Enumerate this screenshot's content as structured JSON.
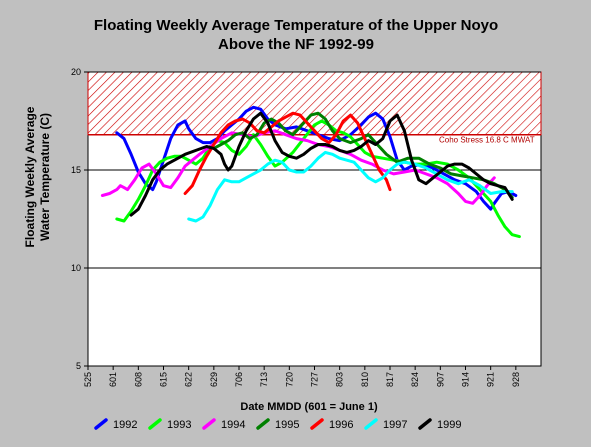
{
  "chart_data": {
    "type": "line",
    "title_line1": "Floating Weekly Average Temperature of the Upper Noyo",
    "title_line2": "Above the NF 1992-99",
    "xlabel": "Date MMDD (601 = June 1)",
    "ylabel_line1": "Floating Weekly Average",
    "ylabel_line2": "Water Temperature (C)",
    "x_tick_labels": [
      "525",
      "601",
      "608",
      "615",
      "622",
      "629",
      "706",
      "713",
      "720",
      "727",
      "803",
      "810",
      "817",
      "824",
      "907",
      "914",
      "921",
      "928"
    ],
    "xlim_day": [
      0,
      126
    ],
    "ylim": [
      5,
      20
    ],
    "y_ticks": [
      5,
      10,
      15,
      20
    ],
    "horizontal_lines": [
      10,
      15,
      20
    ],
    "stress_threshold": 16.8,
    "stress_label": "Coho Stress 16.8  C MWAT",
    "colors": {
      "stress": "#cc0000",
      "grid": "#000000"
    },
    "series": [
      {
        "name": "1992",
        "color": "#0000ff",
        "points": [
          [
            8,
            16.9
          ],
          [
            10,
            16.6
          ],
          [
            12,
            15.8
          ],
          [
            14,
            14.9
          ],
          [
            16,
            14.3
          ],
          [
            18,
            14.0
          ],
          [
            19,
            14.4
          ],
          [
            21,
            15.5
          ],
          [
            23,
            16.6
          ],
          [
            25,
            17.3
          ],
          [
            27,
            17.5
          ],
          [
            28,
            17.1
          ],
          [
            30,
            16.6
          ],
          [
            32,
            16.4
          ],
          [
            34,
            16.4
          ],
          [
            36,
            16.6
          ],
          [
            38,
            17.0
          ],
          [
            40,
            17.3
          ],
          [
            42,
            17.6
          ],
          [
            44,
            18.0
          ],
          [
            46,
            18.2
          ],
          [
            48,
            18.1
          ],
          [
            50,
            17.6
          ],
          [
            52,
            17.3
          ],
          [
            55,
            17.1
          ],
          [
            58,
            17.2
          ],
          [
            61,
            17.0
          ],
          [
            64,
            16.8
          ],
          [
            67,
            16.6
          ],
          [
            70,
            16.5
          ],
          [
            73,
            16.8
          ],
          [
            76,
            17.3
          ],
          [
            78,
            17.7
          ],
          [
            80,
            17.9
          ],
          [
            82,
            17.6
          ],
          [
            84,
            16.7
          ],
          [
            86,
            15.5
          ],
          [
            88,
            15.0
          ],
          [
            90,
            15.2
          ],
          [
            93,
            15.3
          ],
          [
            96,
            15.1
          ],
          [
            99,
            14.8
          ],
          [
            102,
            14.5
          ],
          [
            105,
            14.3
          ],
          [
            108,
            13.9
          ],
          [
            110,
            13.4
          ],
          [
            112,
            13.0
          ],
          [
            113,
            13.3
          ],
          [
            115,
            13.8
          ],
          [
            117,
            13.9
          ],
          [
            119,
            13.7
          ]
        ]
      },
      {
        "name": "1993",
        "color": "#00ff00",
        "points": [
          [
            8,
            12.5
          ],
          [
            10,
            12.4
          ],
          [
            12,
            12.9
          ],
          [
            14,
            13.5
          ],
          [
            16,
            14.2
          ],
          [
            18,
            15.0
          ],
          [
            20,
            15.4
          ],
          [
            22,
            15.6
          ],
          [
            24,
            15.7
          ],
          [
            26,
            15.7
          ],
          [
            28,
            15.5
          ],
          [
            30,
            15.3
          ],
          [
            32,
            15.6
          ],
          [
            34,
            16.2
          ],
          [
            36,
            16.5
          ],
          [
            38,
            16.4
          ],
          [
            40,
            16.0
          ],
          [
            42,
            15.8
          ],
          [
            44,
            16.2
          ],
          [
            46,
            16.8
          ],
          [
            48,
            16.3
          ],
          [
            50,
            15.7
          ],
          [
            52,
            15.2
          ],
          [
            54,
            15.4
          ],
          [
            57,
            15.9
          ],
          [
            60,
            16.6
          ],
          [
            63,
            17.3
          ],
          [
            65,
            17.5
          ],
          [
            67,
            17.3
          ],
          [
            69,
            17.0
          ],
          [
            71,
            16.9
          ],
          [
            73,
            16.7
          ],
          [
            75,
            16.3
          ],
          [
            77,
            15.9
          ],
          [
            79,
            15.7
          ],
          [
            82,
            15.6
          ],
          [
            85,
            15.5
          ],
          [
            88,
            15.4
          ],
          [
            91,
            15.3
          ],
          [
            94,
            15.3
          ],
          [
            97,
            15.4
          ],
          [
            100,
            15.3
          ],
          [
            103,
            15.0
          ],
          [
            106,
            14.6
          ],
          [
            109,
            14.0
          ],
          [
            112,
            13.4
          ],
          [
            114,
            12.7
          ],
          [
            116,
            12.1
          ],
          [
            118,
            11.7
          ],
          [
            120,
            11.6
          ]
        ]
      },
      {
        "name": "1994",
        "color": "#ff00ff",
        "points": [
          [
            4,
            13.7
          ],
          [
            6,
            13.8
          ],
          [
            8,
            14.0
          ],
          [
            9,
            14.2
          ],
          [
            10,
            14.1
          ],
          [
            11,
            14.0
          ],
          [
            13,
            14.5
          ],
          [
            15,
            15.1
          ],
          [
            17,
            15.3
          ],
          [
            19,
            14.8
          ],
          [
            21,
            14.2
          ],
          [
            23,
            14.1
          ],
          [
            25,
            14.6
          ],
          [
            27,
            15.2
          ],
          [
            29,
            15.5
          ],
          [
            31,
            15.8
          ],
          [
            34,
            16.2
          ],
          [
            37,
            16.6
          ],
          [
            40,
            16.9
          ],
          [
            43,
            16.8
          ],
          [
            46,
            16.7
          ],
          [
            49,
            16.9
          ],
          [
            52,
            17.0
          ],
          [
            55,
            16.8
          ],
          [
            58,
            16.6
          ],
          [
            61,
            16.5
          ],
          [
            64,
            16.3
          ],
          [
            67,
            16.2
          ],
          [
            70,
            16.0
          ],
          [
            73,
            15.8
          ],
          [
            76,
            15.5
          ],
          [
            79,
            15.3
          ],
          [
            82,
            15.0
          ],
          [
            85,
            14.8
          ],
          [
            88,
            14.9
          ],
          [
            91,
            15.0
          ],
          [
            94,
            14.8
          ],
          [
            97,
            14.6
          ],
          [
            100,
            14.3
          ],
          [
            103,
            13.8
          ],
          [
            105,
            13.4
          ],
          [
            107,
            13.3
          ],
          [
            109,
            13.7
          ],
          [
            111,
            14.2
          ],
          [
            113,
            14.6
          ]
        ]
      },
      {
        "name": "1995",
        "color": "#008000",
        "points": [
          [
            35,
            16.1
          ],
          [
            37,
            16.3
          ],
          [
            39,
            16.5
          ],
          [
            41,
            16.8
          ],
          [
            43,
            16.9
          ],
          [
            45,
            16.6
          ],
          [
            47,
            16.8
          ],
          [
            49,
            17.4
          ],
          [
            51,
            17.6
          ],
          [
            53,
            17.4
          ],
          [
            55,
            17.0
          ],
          [
            57,
            16.8
          ],
          [
            60,
            17.4
          ],
          [
            62,
            17.8
          ],
          [
            64,
            17.9
          ],
          [
            66,
            17.6
          ],
          [
            68,
            17.0
          ],
          [
            70,
            16.6
          ],
          [
            73,
            16.4
          ],
          [
            76,
            16.6
          ],
          [
            78,
            16.8
          ],
          [
            80,
            16.4
          ],
          [
            83,
            15.8
          ],
          [
            86,
            15.4
          ],
          [
            89,
            15.6
          ],
          [
            92,
            15.6
          ],
          [
            95,
            15.3
          ],
          [
            98,
            15.1
          ],
          [
            101,
            14.8
          ],
          [
            104,
            14.7
          ],
          [
            107,
            14.6
          ],
          [
            110,
            14.5
          ],
          [
            113,
            14.3
          ],
          [
            116,
            14.0
          ],
          [
            118,
            13.6
          ]
        ]
      },
      {
        "name": "1996",
        "color": "#ff0000",
        "points": [
          [
            27,
            13.8
          ],
          [
            29,
            14.2
          ],
          [
            31,
            15.0
          ],
          [
            33,
            15.7
          ],
          [
            35,
            16.3
          ],
          [
            37,
            16.9
          ],
          [
            39,
            17.3
          ],
          [
            41,
            17.5
          ],
          [
            43,
            17.6
          ],
          [
            45,
            17.4
          ],
          [
            47,
            17.0
          ],
          [
            49,
            16.9
          ],
          [
            51,
            17.2
          ],
          [
            53,
            17.5
          ],
          [
            55,
            17.7
          ],
          [
            57,
            17.9
          ],
          [
            59,
            17.8
          ],
          [
            61,
            17.4
          ],
          [
            63,
            17.0
          ],
          [
            65,
            16.6
          ],
          [
            67,
            16.4
          ],
          [
            69,
            16.8
          ],
          [
            71,
            17.5
          ],
          [
            73,
            17.8
          ],
          [
            75,
            17.4
          ],
          [
            77,
            16.6
          ],
          [
            79,
            15.8
          ],
          [
            81,
            15.0
          ],
          [
            83,
            14.5
          ],
          [
            84,
            14.0
          ]
        ]
      },
      {
        "name": "1997",
        "color": "#00ffff",
        "points": [
          [
            28,
            12.5
          ],
          [
            30,
            12.4
          ],
          [
            32,
            12.6
          ],
          [
            34,
            13.2
          ],
          [
            36,
            14.0
          ],
          [
            38,
            14.5
          ],
          [
            40,
            14.4
          ],
          [
            42,
            14.4
          ],
          [
            44,
            14.6
          ],
          [
            46,
            14.8
          ],
          [
            48,
            15.0
          ],
          [
            50,
            15.3
          ],
          [
            52,
            15.5
          ],
          [
            54,
            15.4
          ],
          [
            56,
            15.0
          ],
          [
            58,
            14.9
          ],
          [
            60,
            14.9
          ],
          [
            62,
            15.2
          ],
          [
            64,
            15.6
          ],
          [
            66,
            15.9
          ],
          [
            68,
            15.8
          ],
          [
            70,
            15.6
          ],
          [
            72,
            15.5
          ],
          [
            74,
            15.4
          ],
          [
            76,
            15.0
          ],
          [
            78,
            14.6
          ],
          [
            80,
            14.4
          ],
          [
            82,
            14.6
          ],
          [
            84,
            15.0
          ],
          [
            86,
            15.3
          ],
          [
            88,
            15.4
          ],
          [
            91,
            15.3
          ],
          [
            94,
            15.1
          ],
          [
            97,
            14.8
          ],
          [
            100,
            14.5
          ],
          [
            103,
            14.3
          ],
          [
            106,
            14.5
          ],
          [
            109,
            14.2
          ],
          [
            112,
            13.8
          ],
          [
            115,
            13.9
          ],
          [
            118,
            13.9
          ]
        ]
      },
      {
        "name": "1999",
        "color": "#000000",
        "points": [
          [
            12,
            12.7
          ],
          [
            14,
            13.0
          ],
          [
            16,
            13.7
          ],
          [
            18,
            14.5
          ],
          [
            20,
            15.0
          ],
          [
            22,
            15.3
          ],
          [
            24,
            15.5
          ],
          [
            27,
            15.8
          ],
          [
            30,
            16.0
          ],
          [
            33,
            16.2
          ],
          [
            35,
            16.1
          ],
          [
            37,
            15.8
          ],
          [
            38,
            15.3
          ],
          [
            39,
            15.0
          ],
          [
            40,
            15.2
          ],
          [
            42,
            16.2
          ],
          [
            44,
            17.0
          ],
          [
            46,
            17.6
          ],
          [
            48,
            17.9
          ],
          [
            50,
            17.4
          ],
          [
            52,
            16.5
          ],
          [
            54,
            15.9
          ],
          [
            56,
            15.7
          ],
          [
            58,
            15.6
          ],
          [
            60,
            15.8
          ],
          [
            62,
            16.1
          ],
          [
            64,
            16.3
          ],
          [
            66,
            16.3
          ],
          [
            68,
            16.2
          ],
          [
            70,
            16.0
          ],
          [
            72,
            15.9
          ],
          [
            74,
            16.0
          ],
          [
            76,
            16.2
          ],
          [
            78,
            16.5
          ],
          [
            80,
            16.3
          ],
          [
            82,
            16.6
          ],
          [
            84,
            17.5
          ],
          [
            86,
            17.8
          ],
          [
            88,
            17.0
          ],
          [
            90,
            15.5
          ],
          [
            92,
            14.5
          ],
          [
            94,
            14.3
          ],
          [
            96,
            14.6
          ],
          [
            98,
            14.9
          ],
          [
            100,
            15.2
          ],
          [
            102,
            15.3
          ],
          [
            104,
            15.3
          ],
          [
            106,
            15.1
          ],
          [
            108,
            14.8
          ],
          [
            110,
            14.5
          ],
          [
            112,
            14.3
          ],
          [
            114,
            14.2
          ],
          [
            116,
            14.1
          ],
          [
            117,
            13.8
          ],
          [
            118,
            13.5
          ]
        ]
      }
    ],
    "legend": [
      "1992",
      "1993",
      "1994",
      "1995",
      "1996",
      "1997",
      "1999"
    ]
  }
}
